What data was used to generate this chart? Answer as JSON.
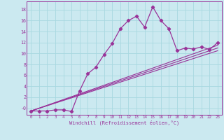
{
  "xlabel": "Windchill (Refroidissement éolien,°C)",
  "bg_color": "#cbe9f0",
  "line_color": "#993399",
  "grid_color": "#a8d8e0",
  "xlim": [
    -0.5,
    23.5
  ],
  "ylim": [
    -1.2,
    19.5
  ],
  "xticks": [
    0,
    1,
    2,
    3,
    4,
    5,
    6,
    7,
    8,
    9,
    10,
    11,
    12,
    13,
    14,
    15,
    16,
    17,
    18,
    19,
    20,
    21,
    22,
    23
  ],
  "yticks": [
    0,
    2,
    4,
    6,
    8,
    10,
    12,
    14,
    16,
    18
  ],
  "ytick_labels": [
    "-0",
    "2",
    "4",
    "6",
    "8",
    "10",
    "12",
    "14",
    "16",
    "18"
  ],
  "curve1_x": [
    0,
    1,
    2,
    3,
    4,
    5,
    6,
    7,
    8,
    9,
    10,
    11,
    12,
    13,
    14,
    15,
    16,
    17,
    18,
    19,
    20,
    21,
    22,
    23
  ],
  "curve1_y": [
    -0.5,
    -0.5,
    -0.5,
    -0.3,
    -0.3,
    -0.6,
    3.2,
    6.3,
    7.5,
    9.8,
    11.8,
    14.5,
    16.0,
    16.8,
    14.8,
    18.5,
    16.0,
    14.5,
    10.5,
    11.0,
    10.8,
    11.2,
    10.7,
    12.0
  ],
  "line1_x": [
    0,
    23
  ],
  "line1_y": [
    -0.5,
    11.5
  ],
  "line2_x": [
    0,
    23
  ],
  "line2_y": [
    -0.5,
    11.0
  ],
  "line3_x": [
    0,
    23
  ],
  "line3_y": [
    -0.5,
    10.5
  ]
}
